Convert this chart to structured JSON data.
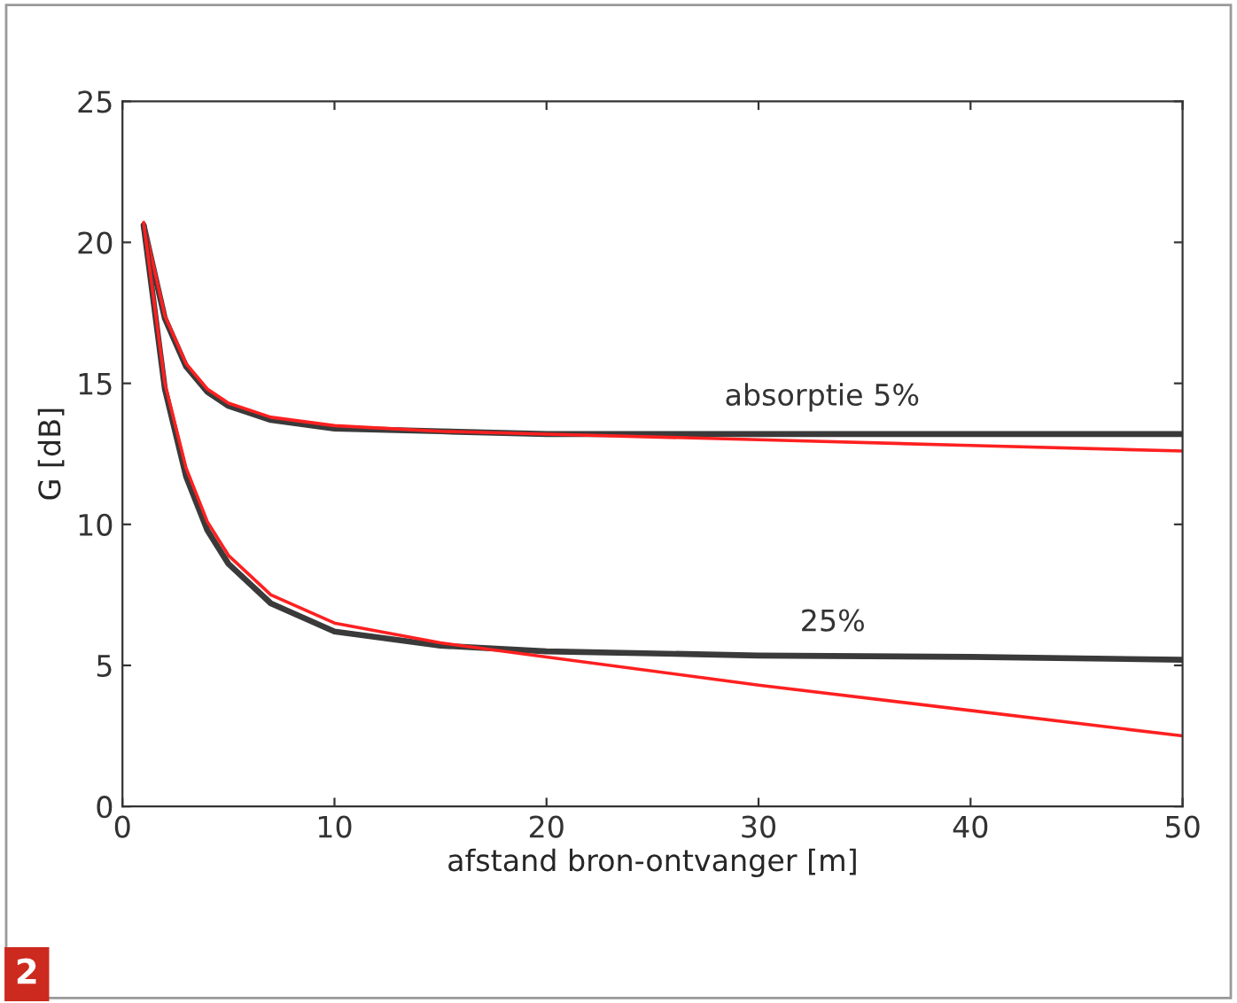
{
  "chart_data": {
    "type": "line",
    "xlabel": "afstand bron-ontvanger [m]",
    "ylabel": "G [dB]",
    "xlim": [
      0,
      50
    ],
    "xticks": [
      0,
      10,
      20,
      30,
      40,
      50
    ],
    "ylim": [
      0,
      25
    ],
    "yticks": [
      0,
      5,
      10,
      15,
      20,
      25
    ],
    "grid": false,
    "marker": "none",
    "line_style": "solid",
    "series": [
      {
        "color": "#3a3a3a",
        "x": [
          1,
          2,
          3,
          4,
          5,
          7,
          10,
          15,
          20,
          30,
          40,
          50
        ],
        "values": [
          20.6,
          17.3,
          15.6,
          14.7,
          14.2,
          13.7,
          13.4,
          13.3,
          13.2,
          13.2,
          13.2,
          13.2
        ]
      },
      {
        "color": "#ff2020",
        "x": [
          1,
          2,
          3,
          4,
          5,
          7,
          10,
          15,
          20,
          30,
          40,
          50
        ],
        "values": [
          20.7,
          17.4,
          15.7,
          14.8,
          14.3,
          13.8,
          13.5,
          13.3,
          13.2,
          13.0,
          12.8,
          12.6
        ]
      },
      {
        "color": "#3a3a3a",
        "x": [
          1,
          2,
          3,
          4,
          5,
          7,
          10,
          15,
          20,
          30,
          40,
          50
        ],
        "values": [
          20.6,
          14.8,
          11.7,
          9.8,
          8.6,
          7.2,
          6.2,
          5.7,
          5.5,
          5.35,
          5.3,
          5.2
        ]
      },
      {
        "color": "#ff2020",
        "x": [
          1,
          2,
          3,
          4,
          5,
          7,
          10,
          15,
          20,
          30,
          40,
          50
        ],
        "values": [
          20.7,
          15.0,
          12.0,
          10.1,
          8.9,
          7.5,
          6.5,
          5.8,
          5.3,
          4.3,
          3.4,
          2.5
        ]
      }
    ],
    "annotations": [
      "absorptie 5%",
      "25%",
      "2"
    ]
  }
}
